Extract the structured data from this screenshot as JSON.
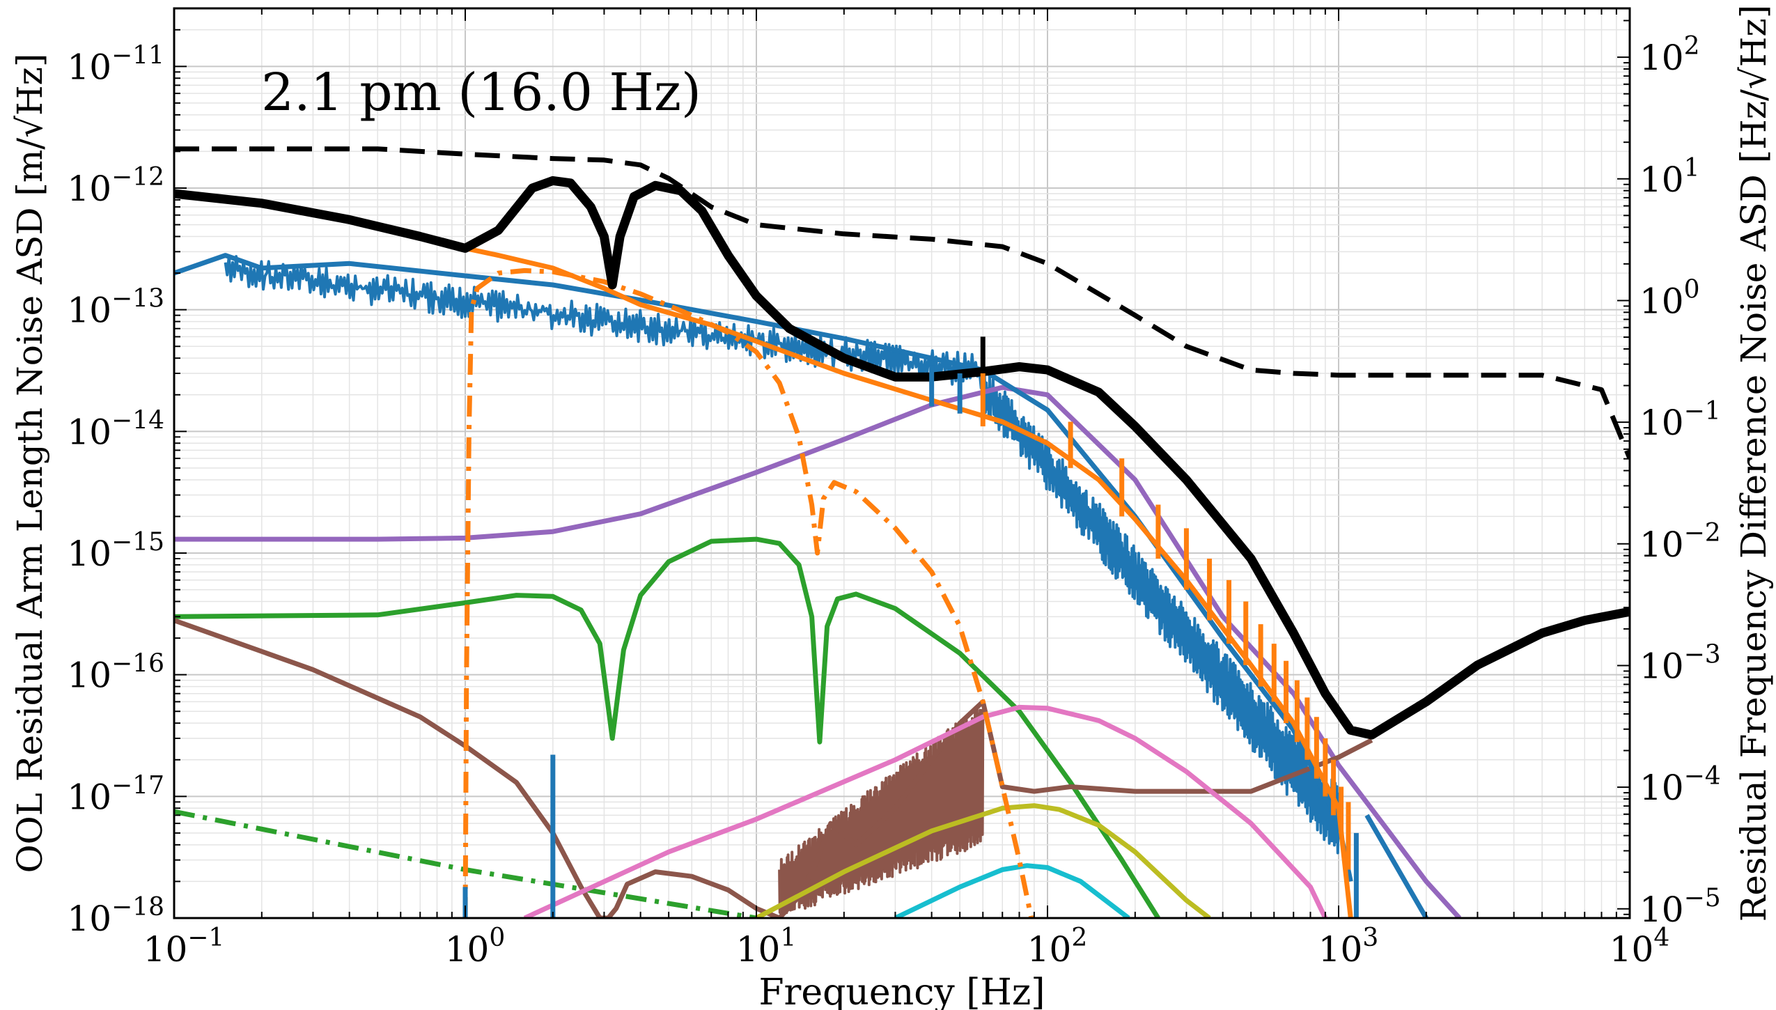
{
  "chart_data": {
    "type": "line",
    "title": "",
    "annotation": "2.1 pm (16.0 Hz)",
    "xlabel": "Frequency [Hz]",
    "ylabel": "OOL Residual Arm Length Noise ASD [m/√Hz]",
    "ylabel_right": "Residual Frequency Difference Noise ASD [Hz/√Hz]",
    "x_scale": "log",
    "y_scale": "log",
    "xlim": [
      0.1,
      10000
    ],
    "ylim": [
      1e-18,
      3e-11
    ],
    "ylim_right": [
      8.4e-06,
      252
    ],
    "grid": true,
    "x_ticks": [
      {
        "value": 0.1,
        "base": "10",
        "exp": "−1"
      },
      {
        "value": 1,
        "base": "10",
        "exp": "0"
      },
      {
        "value": 10,
        "base": "10",
        "exp": "1"
      },
      {
        "value": 100,
        "base": "10",
        "exp": "2"
      },
      {
        "value": 1000,
        "base": "10",
        "exp": "3"
      },
      {
        "value": 10000,
        "base": "10",
        "exp": "4"
      }
    ],
    "y_ticks": [
      {
        "value": 1e-18,
        "base": "10",
        "exp": "−18"
      },
      {
        "value": 1e-17,
        "base": "10",
        "exp": "−17"
      },
      {
        "value": 1e-16,
        "base": "10",
        "exp": "−16"
      },
      {
        "value": 1e-15,
        "base": "10",
        "exp": "−15"
      },
      {
        "value": 1e-14,
        "base": "10",
        "exp": "−14"
      },
      {
        "value": 1e-13,
        "base": "10",
        "exp": "−13"
      },
      {
        "value": 1e-12,
        "base": "10",
        "exp": "−12"
      },
      {
        "value": 1e-11,
        "base": "10",
        "exp": "−11"
      }
    ],
    "y_ticks_right": [
      {
        "value": 1e-05,
        "base": "10",
        "exp": "−5"
      },
      {
        "value": 0.0001,
        "base": "10",
        "exp": "−4"
      },
      {
        "value": 0.001,
        "base": "10",
        "exp": "−3"
      },
      {
        "value": 0.01,
        "base": "10",
        "exp": "−2"
      },
      {
        "value": 0.1,
        "base": "10",
        "exp": "−1"
      },
      {
        "value": 1,
        "base": "10",
        "exp": "0"
      },
      {
        "value": 10,
        "base": "10",
        "exp": "1"
      },
      {
        "value": 100,
        "base": "10",
        "exp": "2"
      }
    ],
    "series": [
      {
        "color": "#9467bd",
        "style": "solid",
        "x": [
          0.1,
          0.5,
          1,
          2,
          4,
          10,
          20,
          40,
          70,
          100,
          200,
          400,
          700,
          1000,
          1500,
          2000,
          2600
        ],
        "y": [
          1.3e-15,
          1.3e-15,
          1.33e-15,
          1.5e-15,
          2.1e-15,
          4.6e-15,
          8.6e-15,
          1.65e-14,
          2.3e-14,
          2e-14,
          4e-15,
          3e-16,
          7e-17,
          1.8e-17,
          5e-18,
          2e-18,
          1e-18
        ]
      },
      {
        "color": "#2ca02c",
        "style": "solid",
        "x": [
          0.1,
          0.5,
          1,
          1.5,
          2,
          2.5,
          2.9,
          3.2,
          3.5,
          4,
          5,
          7,
          10,
          12,
          14,
          15.5,
          16.5,
          17.5,
          19,
          22,
          30,
          50,
          80,
          120,
          180,
          240
        ],
        "y": [
          3e-16,
          3.1e-16,
          3.9e-16,
          4.5e-16,
          4.4e-16,
          3.4e-16,
          1.8e-16,
          3e-17,
          1.6e-16,
          4.5e-16,
          8.5e-16,
          1.25e-15,
          1.3e-15,
          1.2e-15,
          8e-16,
          3e-16,
          2.8e-17,
          2.5e-16,
          4.2e-16,
          4.6e-16,
          3.5e-16,
          1.5e-16,
          5e-17,
          1.3e-17,
          3e-18,
          1e-18
        ]
      },
      {
        "color": "#2ca02c",
        "style": "dashdot",
        "x": [
          0.1,
          1,
          10
        ],
        "y": [
          7.5e-18,
          2.5e-18,
          1e-18
        ]
      },
      {
        "color": "#8c564b",
        "style": "solid",
        "x": [
          0.1,
          0.3,
          0.7,
          1,
          1.5,
          2,
          2.5,
          2.9,
          3.1,
          3.3,
          3.6,
          4.5,
          6,
          8,
          10,
          12,
          14,
          16,
          18,
          22,
          30,
          40,
          50,
          60,
          70,
          90,
          120,
          200,
          500,
          1000,
          1300
        ],
        "y": [
          2.8e-16,
          1.1e-16,
          4.5e-17,
          2.6e-17,
          1.3e-17,
          5e-18,
          1.8e-18,
          1e-18,
          1e-18,
          1.2e-18,
          1.9e-18,
          2.4e-18,
          2.2e-18,
          1.7e-18,
          1.2e-18,
          1e-18,
          1.5e-18,
          2.8e-18,
          6e-18,
          4e-18,
          8e-18,
          2e-17,
          4e-17,
          6e-17,
          1.2e-17,
          1.1e-17,
          1.2e-17,
          1.1e-17,
          1.1e-17,
          2.1e-17,
          2.9e-17
        ]
      },
      {
        "color": "#e377c2",
        "style": "solid",
        "x": [
          1.6,
          5,
          10,
          30,
          60,
          80,
          100,
          150,
          200,
          300,
          500,
          800,
          900
        ],
        "y": [
          1e-18,
          3.5e-18,
          6.5e-18,
          2e-17,
          4.5e-17,
          5.4e-17,
          5.3e-17,
          4.2e-17,
          3e-17,
          1.6e-17,
          6e-18,
          1.8e-18,
          1e-18
        ]
      },
      {
        "color": "#bcbd22",
        "style": "solid",
        "x": [
          10,
          20,
          40,
          70,
          90,
          110,
          150,
          200,
          300,
          360
        ],
        "y": [
          1e-18,
          2.4e-18,
          5.2e-18,
          8e-18,
          8.4e-18,
          7.8e-18,
          5.8e-18,
          3.5e-18,
          1.4e-18,
          1e-18
        ]
      },
      {
        "color": "#17becf",
        "style": "solid",
        "x": [
          30,
          50,
          70,
          85,
          100,
          130,
          190
        ],
        "y": [
          1e-18,
          1.8e-18,
          2.5e-18,
          2.7e-18,
          2.6e-18,
          2e-18,
          1e-18
        ]
      },
      {
        "color": "#1f77b4",
        "style": "solid",
        "x": [
          0.1,
          0.15,
          0.2,
          0.4,
          1,
          2,
          4,
          10,
          20,
          40,
          60,
          100,
          200,
          400,
          700,
          1000,
          1100
        ],
        "y": [
          2e-13,
          2.8e-13,
          2.2e-13,
          2.4e-13,
          1.9e-13,
          1.6e-13,
          1.2e-13,
          8e-14,
          5.8e-14,
          4e-14,
          3.2e-14,
          1.5e-14,
          2e-15,
          2e-16,
          3.5e-17,
          6e-18,
          2e-18
        ]
      },
      {
        "color": "#1f77b4",
        "style": "solid",
        "x": [
          1250,
          2000
        ],
        "y": [
          7e-18,
          1e-18
        ]
      },
      {
        "color": "#ff7f0e",
        "style": "solid",
        "x": [
          0.1,
          0.2,
          0.4,
          0.7,
          1,
          1.3,
          2,
          3,
          4,
          7,
          10,
          20,
          40,
          70,
          100,
          150,
          200,
          300,
          500,
          700,
          1000,
          1100
        ],
        "y": [
          9e-13,
          7.5e-13,
          5.5e-13,
          4e-13,
          3.2e-13,
          2.8e-13,
          2.2e-13,
          1.5e-13,
          1.1e-13,
          7.5e-14,
          5.5e-14,
          3e-14,
          1.8e-14,
          1.2e-14,
          8e-15,
          4e-15,
          1.9e-15,
          6e-16,
          1.2e-16,
          4e-17,
          8e-18,
          1e-18
        ]
      },
      {
        "color": "#ff7f0e",
        "style": "dashdot",
        "x": [
          1,
          1.01,
          1.03,
          1.05,
          1.1,
          1.3,
          1.6,
          2,
          3,
          4,
          6,
          8,
          10,
          12,
          14,
          15.5,
          16.2,
          17,
          18.5,
          22,
          30,
          40,
          50,
          60,
          70,
          80,
          88
        ],
        "y": [
          1e-18,
          1e-16,
          1e-14,
          1e-13,
          1.5e-13,
          2e-13,
          2.1e-13,
          2.05e-13,
          1.7e-13,
          1.35e-13,
          9e-14,
          6.5e-14,
          4.5e-14,
          2.5e-14,
          9e-15,
          2.5e-15,
          1e-15,
          2.8e-15,
          3.8e-15,
          3.2e-15,
          1.6e-15,
          7e-16,
          2.5e-16,
          6e-17,
          1.2e-17,
          3e-18,
          1e-18
        ]
      },
      {
        "color": "#000000",
        "style": "dashed",
        "x": [
          0.1,
          0.5,
          1,
          2,
          3,
          4,
          5,
          7,
          10,
          20,
          40,
          70,
          100,
          200,
          300,
          500,
          700,
          1000,
          2000,
          5000,
          8000,
          10000
        ],
        "y": [
          2.1e-12,
          2.1e-12,
          1.9e-12,
          1.75e-12,
          1.7e-12,
          1.55e-12,
          1.2e-12,
          7e-13,
          5e-13,
          4.2e-13,
          3.8e-13,
          3.3e-13,
          2.4e-13,
          9e-14,
          5e-14,
          3.2e-14,
          3e-14,
          2.9e-14,
          2.9e-14,
          2.9e-14,
          2.2e-14,
          6e-15
        ]
      },
      {
        "color": "#000000",
        "style": "solid",
        "x": [
          0.1,
          0.2,
          0.4,
          0.7,
          1,
          1.3,
          1.7,
          2,
          2.3,
          2.7,
          3,
          3.2,
          3.4,
          3.8,
          4.5,
          5.5,
          6.5,
          8,
          10,
          13,
          20,
          30,
          40,
          60,
          80,
          100,
          150,
          200,
          300,
          500,
          700,
          900,
          1100,
          1300,
          2000,
          3000,
          5000,
          7000,
          10000
        ],
        "y": [
          9e-13,
          7.5e-13,
          5.5e-13,
          4e-13,
          3.2e-13,
          4.5e-13,
          1e-12,
          1.15e-12,
          1.1e-12,
          7e-13,
          4e-13,
          1.6e-13,
          4e-13,
          8.5e-13,
          1.05e-12,
          9.5e-13,
          6.5e-13,
          2.8e-13,
          1.3e-13,
          7e-14,
          4e-14,
          2.8e-14,
          2.8e-14,
          3.1e-14,
          3.4e-14,
          3.2e-14,
          2.1e-14,
          1.1e-14,
          4e-15,
          9e-16,
          2.2e-16,
          7e-17,
          3.5e-17,
          3.2e-17,
          6e-17,
          1.2e-16,
          2.2e-16,
          2.8e-16,
          3.3e-16
        ]
      }
    ],
    "spikes": [
      {
        "color": "#1f77b4",
        "x": 1.0,
        "y0": 1e-18,
        "y1": 1.8e-18
      },
      {
        "color": "#1f77b4",
        "x": 2.0,
        "y0": 1e-18,
        "y1": 2.2e-17
      },
      {
        "color": "#000000",
        "x": 60,
        "y0": 3e-14,
        "y1": 6e-14
      },
      {
        "color": "#ff7f0e",
        "x": 60,
        "y0": 1.1e-14,
        "y1": 3e-14
      },
      {
        "color": "#1f77b4",
        "x": 40,
        "y0": 1.6e-14,
        "y1": 3.5e-14
      },
      {
        "color": "#1f77b4",
        "x": 50,
        "y0": 1.4e-14,
        "y1": 3e-14
      },
      {
        "color": "#ff7f0e",
        "x": 120,
        "y0": 5e-15,
        "y1": 1.2e-14
      },
      {
        "color": "#ff7f0e",
        "x": 180,
        "y0": 2e-15,
        "y1": 6e-15
      },
      {
        "color": "#ff7f0e",
        "x": 240,
        "y0": 9e-16,
        "y1": 2.5e-15
      },
      {
        "color": "#ff7f0e",
        "x": 300,
        "y0": 5e-16,
        "y1": 1.6e-15
      },
      {
        "color": "#ff7f0e",
        "x": 360,
        "y0": 2.8e-16,
        "y1": 9e-16
      },
      {
        "color": "#ff7f0e",
        "x": 420,
        "y0": 1.8e-16,
        "y1": 6e-16
      },
      {
        "color": "#ff7f0e",
        "x": 480,
        "y0": 1.2e-16,
        "y1": 4e-16
      },
      {
        "color": "#ff7f0e",
        "x": 540,
        "y0": 8e-17,
        "y1": 2.6e-16
      },
      {
        "color": "#ff7f0e",
        "x": 600,
        "y0": 6e-17,
        "y1": 1.8e-16
      },
      {
        "color": "#ff7f0e",
        "x": 660,
        "y0": 4e-17,
        "y1": 1.3e-16
      },
      {
        "color": "#ff7f0e",
        "x": 720,
        "y0": 2.8e-17,
        "y1": 9e-17
      },
      {
        "color": "#ff7f0e",
        "x": 780,
        "y0": 2e-17,
        "y1": 6.5e-17
      },
      {
        "color": "#ff7f0e",
        "x": 840,
        "y0": 1.4e-17,
        "y1": 4.5e-17
      },
      {
        "color": "#ff7f0e",
        "x": 900,
        "y0": 1e-17,
        "y1": 3e-17
      },
      {
        "color": "#ff7f0e",
        "x": 960,
        "y0": 7e-18,
        "y1": 2e-17
      },
      {
        "color": "#ff7f0e",
        "x": 1020,
        "y0": 5e-18,
        "y1": 1.2e-17
      },
      {
        "color": "#ff7f0e",
        "x": 1080,
        "y0": 2.5e-18,
        "y1": 9e-18
      },
      {
        "color": "#1f77b4",
        "x": 1150,
        "y0": 1e-18,
        "y1": 5e-18
      }
    ],
    "noise_bands": [
      {
        "color": "#1f77b4",
        "x": [
          0.15,
          60
        ],
        "y_lo": [
          1.6e-13,
          2.2e-14
        ],
        "y_hi": [
          2.9e-13,
          4.2e-14
        ]
      },
      {
        "color": "#1f77b4",
        "x": [
          60,
          1000
        ],
        "y_lo": [
          1.5e-14,
          3e-18
        ],
        "y_hi": [
          3.5e-14,
          1.2e-17
        ]
      },
      {
        "color": "#8c564b",
        "x": [
          12,
          60
        ],
        "y_lo": [
          1e-18,
          4e-18
        ],
        "y_hi": [
          3e-18,
          6e-17
        ]
      }
    ]
  }
}
